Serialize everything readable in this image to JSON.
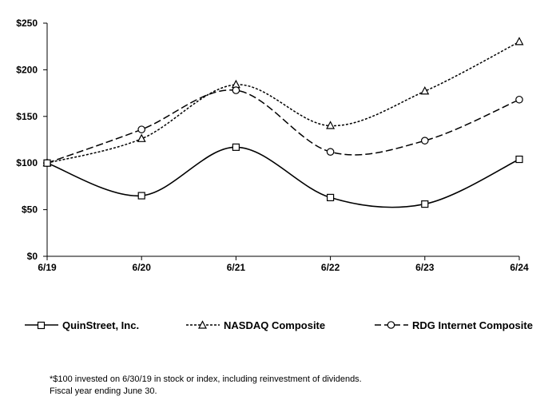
{
  "chart_data": {
    "type": "line",
    "title": "",
    "xlabel": "",
    "ylabel": "",
    "categories": [
      "6/19",
      "6/20",
      "6/21",
      "6/22",
      "6/23",
      "6/24"
    ],
    "y_ticks": [
      "$0",
      "$50",
      "$100",
      "$150",
      "$200",
      "$250"
    ],
    "ylim": [
      0,
      250
    ],
    "grid": false,
    "legend_position": "bottom",
    "series": [
      {
        "name": "QuinStreet, Inc.",
        "marker": "square",
        "dash": "solid",
        "values": [
          100,
          65,
          117,
          63,
          56,
          104
        ]
      },
      {
        "name": "NASDAQ Composite",
        "marker": "triangle",
        "dash": "dotted",
        "values": [
          100,
          126,
          184,
          140,
          177,
          230
        ]
      },
      {
        "name": "RDG Internet Composite",
        "marker": "circle",
        "dash": "dashed",
        "values": [
          100,
          136,
          178,
          112,
          124,
          168
        ]
      }
    ]
  },
  "footnote": {
    "line1": "*$100 invested on 6/30/19 in stock or index, including reinvestment of dividends.",
    "line2": "Fiscal year ending June 30."
  }
}
